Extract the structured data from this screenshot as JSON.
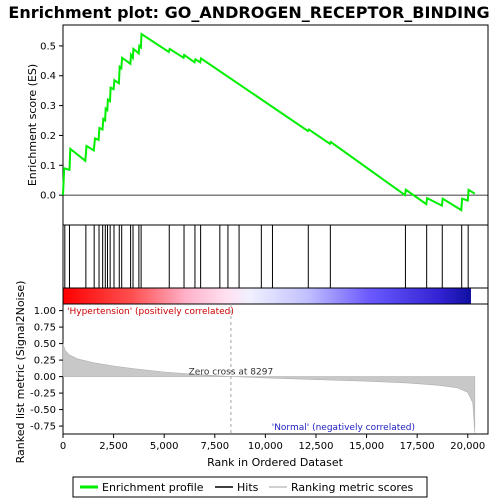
{
  "chart_data": {
    "type": "line",
    "title": "Enrichment plot: GO_ANDROGEN_RECEPTOR_BINDING",
    "xlabel": "Rank in Ordered Dataset",
    "ylabel_top": "Enrichment score (ES)",
    "ylabel_bottom": "Ranked list metric (Signal2Noise)",
    "xlim": [
      0,
      21000
    ],
    "ylim_top": [
      -0.1,
      0.57
    ],
    "ylim_bottom": [
      -0.87,
      1.1
    ],
    "x_ticks": [
      {
        "value": 0,
        "label": "0"
      },
      {
        "value": 2500,
        "label": "2,500"
      },
      {
        "value": 5000,
        "label": "5,000"
      },
      {
        "value": 7500,
        "label": "7,500"
      },
      {
        "value": 10000,
        "label": "10,000"
      },
      {
        "value": 12500,
        "label": "12,500"
      },
      {
        "value": 15000,
        "label": "15,000"
      },
      {
        "value": 17500,
        "label": "17,500"
      },
      {
        "value": 20000,
        "label": "20,000"
      }
    ],
    "y_ticks_top": [
      {
        "value": 0.0,
        "label": "0.0"
      },
      {
        "value": 0.1,
        "label": "0.1"
      },
      {
        "value": 0.2,
        "label": "0.2"
      },
      {
        "value": 0.3,
        "label": "0.3"
      },
      {
        "value": 0.4,
        "label": "0.4"
      },
      {
        "value": 0.5,
        "label": "0.5"
      }
    ],
    "y_ticks_bottom": [
      {
        "value": 1.0,
        "label": "1.00"
      },
      {
        "value": 0.75,
        "label": "0.75"
      },
      {
        "value": 0.5,
        "label": "0.50"
      },
      {
        "value": 0.25,
        "label": "0.25"
      },
      {
        "value": 0.0,
        "label": "0.00"
      },
      {
        "value": -0.25,
        "label": "-0.25"
      },
      {
        "value": -0.5,
        "label": "-0.50"
      },
      {
        "value": -0.75,
        "label": "-0.75"
      }
    ],
    "enrichment_profile": {
      "name": "Enrichment profile",
      "color": "#00ff00",
      "points": [
        [
          0,
          0.0
        ],
        [
          60,
          0.09
        ],
        [
          320,
          0.085
        ],
        [
          360,
          0.155
        ],
        [
          1100,
          0.115
        ],
        [
          1160,
          0.165
        ],
        [
          1520,
          0.15
        ],
        [
          1580,
          0.19
        ],
        [
          1760,
          0.185
        ],
        [
          1800,
          0.225
        ],
        [
          1950,
          0.22
        ],
        [
          1990,
          0.255
        ],
        [
          2080,
          0.25
        ],
        [
          2110,
          0.29
        ],
        [
          2190,
          0.285
        ],
        [
          2220,
          0.32
        ],
        [
          2320,
          0.315
        ],
        [
          2350,
          0.36
        ],
        [
          2500,
          0.355
        ],
        [
          2540,
          0.385
        ],
        [
          2760,
          0.375
        ],
        [
          2800,
          0.43
        ],
        [
          2880,
          0.425
        ],
        [
          2920,
          0.46
        ],
        [
          3330,
          0.44
        ],
        [
          3360,
          0.47
        ],
        [
          3450,
          0.46
        ],
        [
          3480,
          0.49
        ],
        [
          3740,
          0.475
        ],
        [
          3770,
          0.5
        ],
        [
          3850,
          0.495
        ],
        [
          3880,
          0.54
        ],
        [
          5230,
          0.48
        ],
        [
          5270,
          0.49
        ],
        [
          5960,
          0.46
        ],
        [
          5990,
          0.47
        ],
        [
          6500,
          0.445
        ],
        [
          6540,
          0.455
        ],
        [
          6780,
          0.445
        ],
        [
          6820,
          0.458
        ],
        [
          12100,
          0.215
        ],
        [
          12150,
          0.22
        ],
        [
          13190,
          0.172
        ],
        [
          13230,
          0.178
        ],
        [
          16900,
          0.0
        ],
        [
          16940,
          0.018
        ],
        [
          17950,
          -0.03
        ],
        [
          17990,
          -0.01
        ],
        [
          18720,
          -0.035
        ],
        [
          18760,
          -0.012
        ],
        [
          19680,
          -0.05
        ],
        [
          19720,
          -0.012
        ],
        [
          20000,
          -0.018
        ],
        [
          20040,
          0.018
        ],
        [
          20350,
          0.005
        ]
      ]
    },
    "hits": [
      90,
      320,
      1130,
      1540,
      1780,
      1960,
      2090,
      2200,
      2330,
      2520,
      2780,
      2900,
      3340,
      3460,
      3750,
      3860,
      5250,
      5980,
      6520,
      6800,
      7750,
      8150,
      8700,
      9800,
      10350,
      12120,
      13210,
      16920,
      17970,
      18740,
      19700,
      20020
    ],
    "ranking_metric": {
      "name": "Ranking metric scores",
      "color": "#c0c0c0",
      "points": [
        [
          0,
          0.5
        ],
        [
          100,
          0.4
        ],
        [
          300,
          0.33
        ],
        [
          700,
          0.27
        ],
        [
          1500,
          0.21
        ],
        [
          2500,
          0.16
        ],
        [
          3500,
          0.12
        ],
        [
          5000,
          0.07
        ],
        [
          6500,
          0.035
        ],
        [
          8297,
          0.0
        ],
        [
          10000,
          -0.02
        ],
        [
          12500,
          -0.045
        ],
        [
          15000,
          -0.07
        ],
        [
          17000,
          -0.095
        ],
        [
          18500,
          -0.13
        ],
        [
          19500,
          -0.17
        ],
        [
          20000,
          -0.24
        ],
        [
          20250,
          -0.4
        ],
        [
          20350,
          -0.85
        ]
      ]
    },
    "zero_cross_label": "Zero cross at 8297",
    "zero_cross_x": 8297,
    "positive_label": "'Hypertension' (positively correlated)",
    "negative_label": "'Normal' (negatively correlated)",
    "positive_color": "#ff0000",
    "negative_color": "#0000ff",
    "legend": [
      {
        "label": "Enrichment profile",
        "color": "#00ff00"
      },
      {
        "label": "Hits",
        "color": "#000000"
      },
      {
        "label": "Ranking metric scores",
        "color": "#c0c0c0"
      }
    ],
    "legend_placement": "bottom",
    "grid": false
  }
}
